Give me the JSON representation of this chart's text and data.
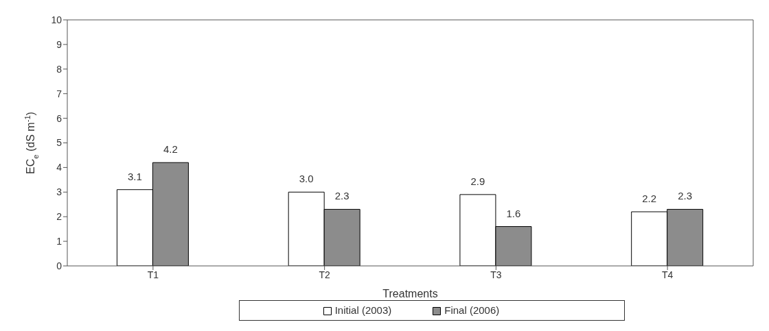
{
  "chart_data": {
    "type": "bar",
    "xlabel": "Treatments",
    "ylabel": "EC$_{e}$ (dS m$^{-1}$)",
    "categories": [
      "T1",
      "T2",
      "T3",
      "T4"
    ],
    "series": [
      {
        "name": "Initial (2003)",
        "color": "#ffffff",
        "values": [
          3.1,
          3.0,
          2.9,
          2.2
        ],
        "value_labels": [
          "3.1",
          "3.0",
          "2.9",
          "2.2"
        ]
      },
      {
        "name": "Final (2006)",
        "color": "#8c8c8c",
        "values": [
          4.2,
          2.3,
          1.6,
          2.3
        ],
        "value_labels": [
          "4.2",
          "2.3",
          "1.6",
          "2.3"
        ]
      }
    ],
    "ylim": [
      0,
      10
    ],
    "yticks": [
      0,
      1,
      2,
      3,
      4,
      5,
      6,
      7,
      8,
      9,
      10
    ],
    "legend": "bottom"
  }
}
